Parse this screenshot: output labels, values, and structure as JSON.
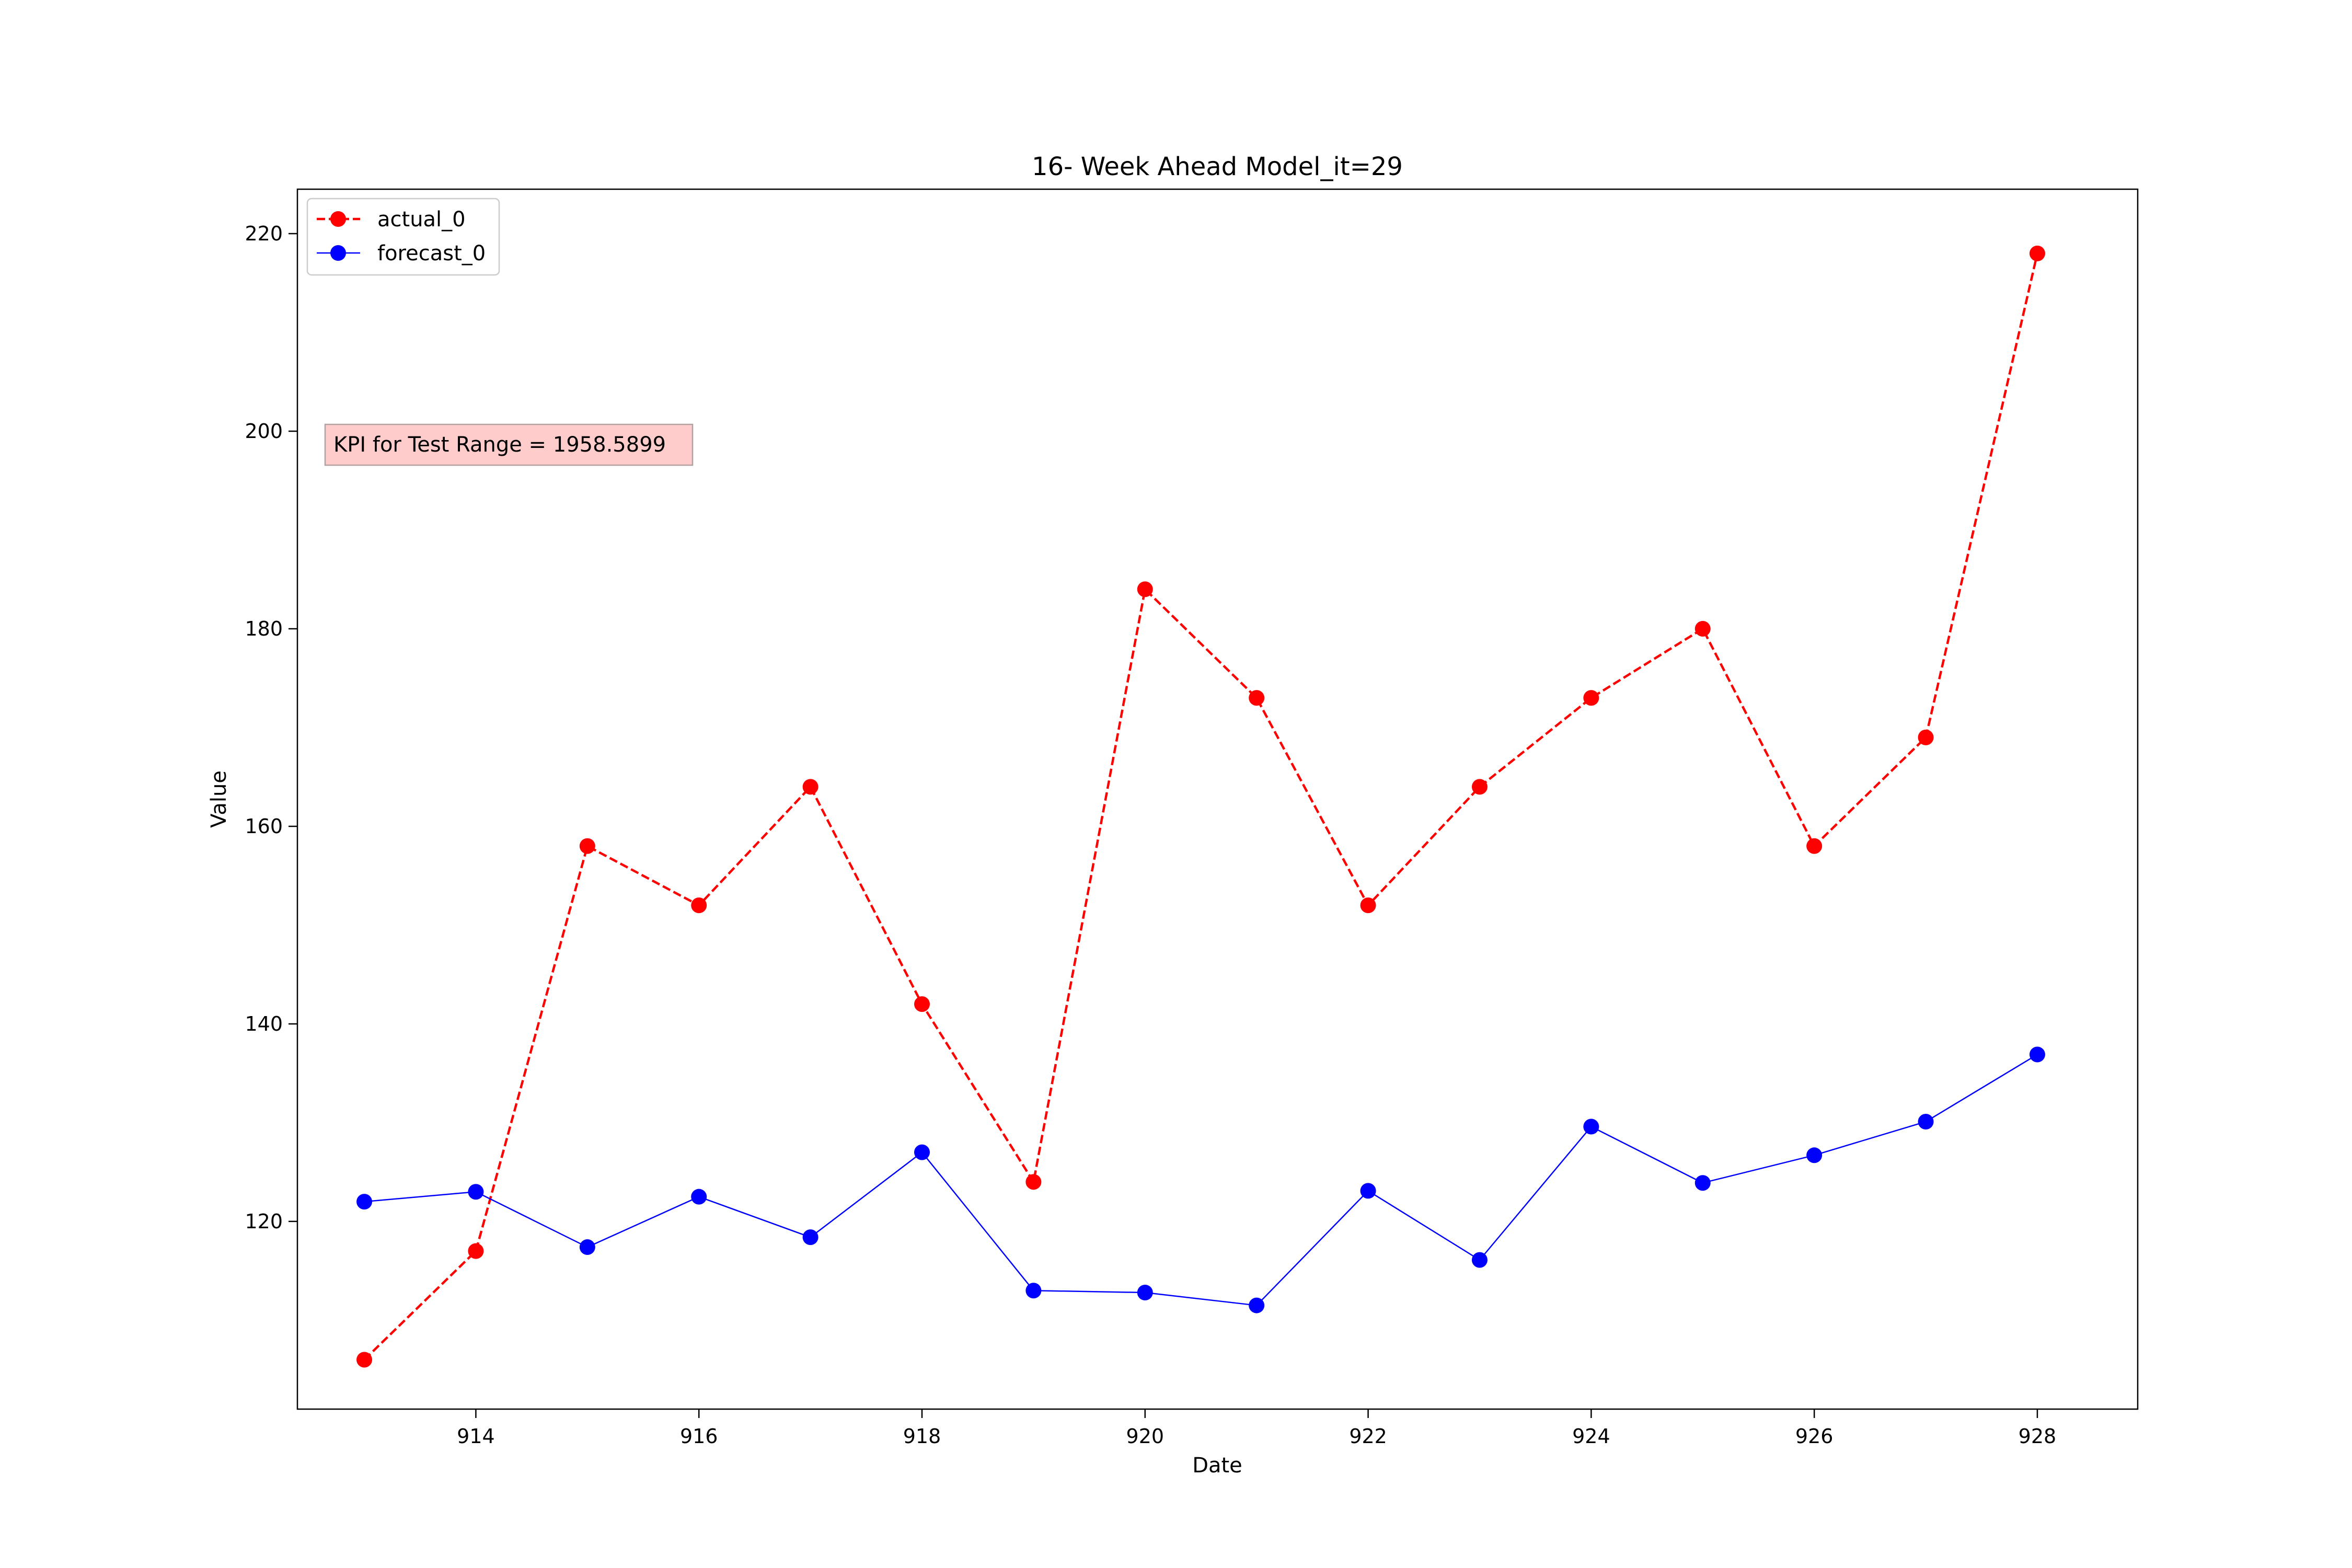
{
  "chart_data": {
    "type": "line",
    "title": "16- Week Ahead Model_it=29",
    "xlabel": "Date",
    "ylabel": "Value",
    "xlim": [
      912.4,
      928.9
    ],
    "ylim": [
      101,
      224.5
    ],
    "xticks": [
      914,
      916,
      918,
      920,
      922,
      924,
      926,
      928
    ],
    "yticks": [
      120,
      140,
      160,
      180,
      200,
      220
    ],
    "grid": false,
    "legend_position": "top-left",
    "x": [
      913,
      914,
      915,
      916,
      917,
      918,
      919,
      920,
      921,
      922,
      923,
      924,
      925,
      926,
      927,
      928
    ],
    "series": [
      {
        "name": "actual_0",
        "color": "#ff0000",
        "line_style": "dashed",
        "marker": "circle",
        "values": [
          106,
          117,
          158,
          152,
          164,
          142,
          124,
          184,
          173,
          152,
          164,
          173,
          180,
          158,
          169,
          218
        ]
      },
      {
        "name": "forecast_0",
        "color": "#0000ff",
        "line_style": "solid",
        "marker": "circle",
        "values": [
          122,
          123,
          117.4,
          122.5,
          118.4,
          127,
          113,
          112.8,
          111.5,
          123.1,
          116.1,
          129.6,
          123.9,
          126.7,
          130.1,
          136.9
        ]
      }
    ],
    "annotation": {
      "text": "KPI for Test Range = 1958.5899",
      "background": "#ffcccc"
    }
  }
}
